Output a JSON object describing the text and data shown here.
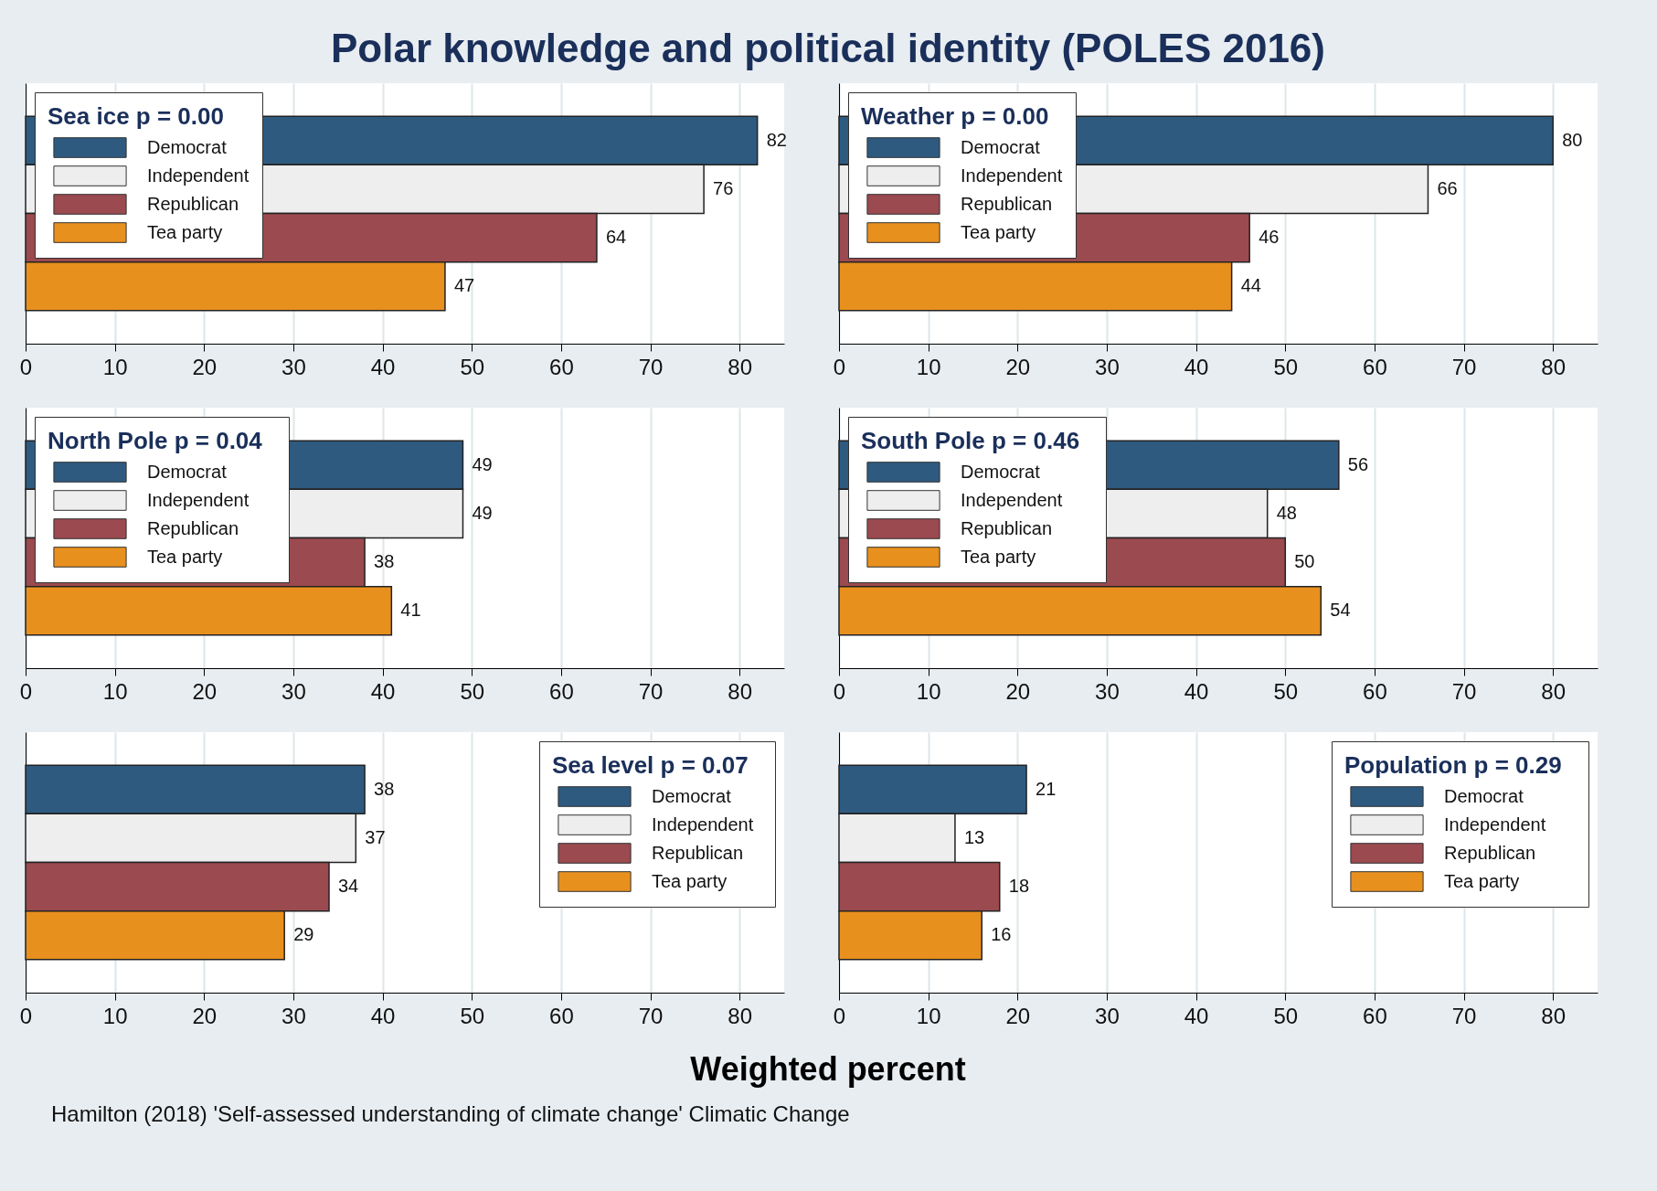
{
  "chart_data": [
    {
      "type": "bar",
      "orientation": "horizontal",
      "title": "Polar knowledge and political identity  (POLES 2016)",
      "legend_title": "Sea ice   p = 0.00",
      "categories": [
        null
      ],
      "xlim": [
        0,
        85
      ],
      "xticks": [
        0,
        10,
        20,
        30,
        40,
        50,
        60,
        70,
        80
      ],
      "grid": "x",
      "legend": "top left",
      "data_labels": true,
      "series": [
        {
          "name": "Democrat",
          "color": "#2e5a80",
          "values": [
            82
          ]
        },
        {
          "name": "Independent",
          "color": "#eeeeee",
          "values": [
            76
          ]
        },
        {
          "name": "Republican",
          "color": "#9b4a4f",
          "values": [
            64
          ]
        },
        {
          "name": "Tea party",
          "color": "#e8901e",
          "values": [
            47
          ]
        }
      ]
    },
    {
      "type": "bar",
      "orientation": "horizontal",
      "legend_title": "Weather   p = 0.00",
      "categories": [
        null
      ],
      "xlim": [
        0,
        85
      ],
      "xticks": [
        0,
        10,
        20,
        30,
        40,
        50,
        60,
        70,
        80
      ],
      "grid": "x",
      "legend": "top left",
      "data_labels": true,
      "series": [
        {
          "name": "Democrat",
          "color": "#2e5a80",
          "values": [
            80
          ]
        },
        {
          "name": "Independent",
          "color": "#eeeeee",
          "values": [
            66
          ]
        },
        {
          "name": "Republican",
          "color": "#9b4a4f",
          "values": [
            46
          ]
        },
        {
          "name": "Tea party",
          "color": "#e8901e",
          "values": [
            44
          ]
        }
      ]
    },
    {
      "type": "bar",
      "orientation": "horizontal",
      "legend_title": "North Pole   p = 0.04",
      "categories": [
        null
      ],
      "xlim": [
        0,
        85
      ],
      "xticks": [
        0,
        10,
        20,
        30,
        40,
        50,
        60,
        70,
        80
      ],
      "grid": "x",
      "legend": "top left",
      "data_labels": true,
      "series": [
        {
          "name": "Democrat",
          "color": "#2e5a80",
          "values": [
            49
          ]
        },
        {
          "name": "Independent",
          "color": "#eeeeee",
          "values": [
            49
          ]
        },
        {
          "name": "Republican",
          "color": "#9b4a4f",
          "values": [
            38
          ]
        },
        {
          "name": "Tea party",
          "color": "#e8901e",
          "values": [
            41
          ]
        }
      ]
    },
    {
      "type": "bar",
      "orientation": "horizontal",
      "legend_title": "South Pole   p = 0.46",
      "categories": [
        null
      ],
      "xlim": [
        0,
        85
      ],
      "xticks": [
        0,
        10,
        20,
        30,
        40,
        50,
        60,
        70,
        80
      ],
      "grid": "x",
      "legend": "top left",
      "data_labels": true,
      "series": [
        {
          "name": "Democrat",
          "color": "#2e5a80",
          "values": [
            56
          ]
        },
        {
          "name": "Independent",
          "color": "#eeeeee",
          "values": [
            48
          ]
        },
        {
          "name": "Republican",
          "color": "#9b4a4f",
          "values": [
            50
          ]
        },
        {
          "name": "Tea party",
          "color": "#e8901e",
          "values": [
            54
          ]
        }
      ]
    },
    {
      "type": "bar",
      "orientation": "horizontal",
      "legend_title": "Sea level   p = 0.07",
      "xlabel": "Weighted percent",
      "annotations": [
        "Hamilton (2018) 'Self-assessed understanding of climate change'  Climatic Change"
      ],
      "categories": [
        null
      ],
      "xlim": [
        0,
        85
      ],
      "xticks": [
        0,
        10,
        20,
        30,
        40,
        50,
        60,
        70,
        80
      ],
      "grid": "x",
      "legend": "top right",
      "data_labels": true,
      "series": [
        {
          "name": "Democrat",
          "color": "#2e5a80",
          "values": [
            38
          ]
        },
        {
          "name": "Independent",
          "color": "#eeeeee",
          "values": [
            37
          ]
        },
        {
          "name": "Republican",
          "color": "#9b4a4f",
          "values": [
            34
          ]
        },
        {
          "name": "Tea party",
          "color": "#e8901e",
          "values": [
            29
          ]
        }
      ]
    },
    {
      "type": "bar",
      "orientation": "horizontal",
      "legend_title": "Population   p = 0.29",
      "categories": [
        null
      ],
      "xlim": [
        0,
        85
      ],
      "xticks": [
        0,
        10,
        20,
        30,
        40,
        50,
        60,
        70,
        80
      ],
      "grid": "x",
      "legend": "top right",
      "data_labels": true,
      "series": [
        {
          "name": "Democrat",
          "color": "#2e5a80",
          "values": [
            21
          ]
        },
        {
          "name": "Independent",
          "color": "#eeeeee",
          "values": [
            13
          ]
        },
        {
          "name": "Republican",
          "color": "#9b4a4f",
          "values": [
            18
          ]
        },
        {
          "name": "Tea party",
          "color": "#e8901e",
          "values": [
            16
          ]
        }
      ]
    }
  ]
}
